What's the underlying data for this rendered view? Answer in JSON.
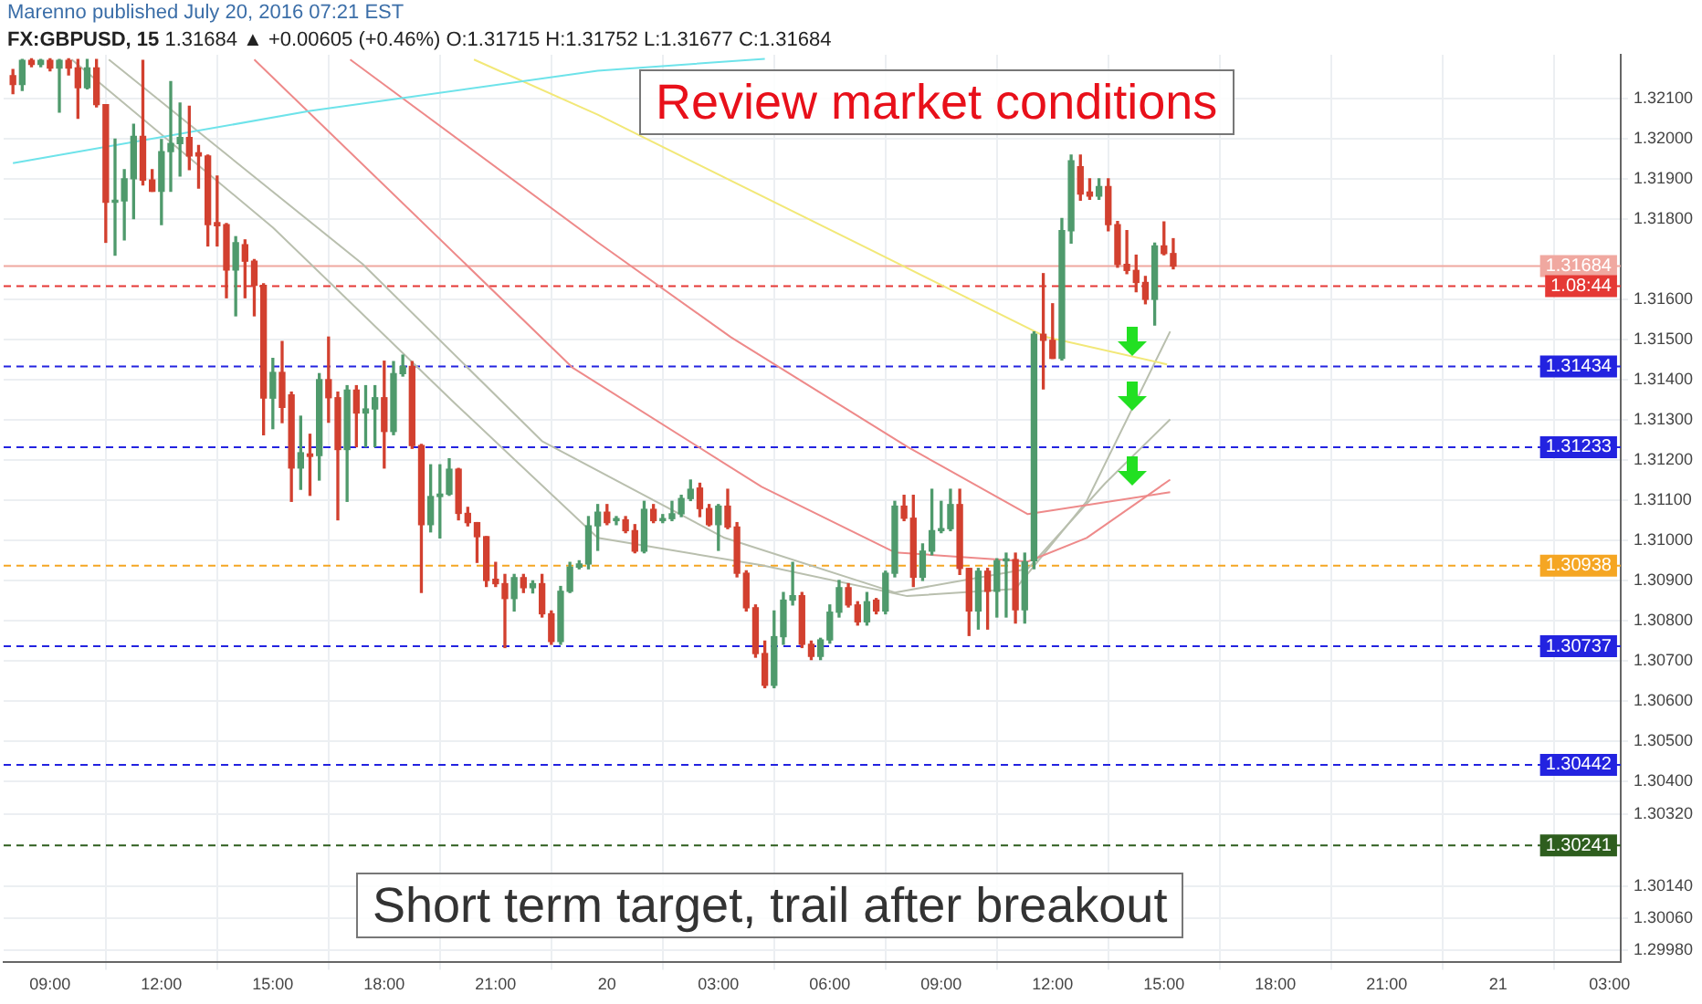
{
  "chart_data": {
    "type": "candlestick",
    "title": "FX:GBPUSD, 15",
    "subtitle": "1.31684 ▲ +0.00605 (+0.46%) O:1.31715 H:1.31752 L:1.31677 C:1.31684",
    "annotations": [
      "Marenno published July 20, 2016 07:21 EST",
      "Review market conditions",
      "Short term target, trail after breakout",
      {
        "text": "1.08:44",
        "y": 1.31634
      }
    ],
    "x": [
      "2016-07-19T08:00",
      "2016-07-19T08:15",
      "2016-07-19T08:30",
      "2016-07-19T08:45",
      "2016-07-19T09:00",
      "2016-07-19T09:15",
      "2016-07-19T09:30",
      "2016-07-19T09:45",
      "2016-07-19T10:00",
      "2016-07-19T10:15",
      "2016-07-19T10:30",
      "2016-07-19T10:45",
      "2016-07-19T11:00",
      "2016-07-19T11:15",
      "2016-07-19T11:30",
      "2016-07-19T11:45",
      "2016-07-19T12:00",
      "2016-07-19T12:15",
      "2016-07-19T12:30",
      "2016-07-19T12:45",
      "2016-07-19T13:00",
      "2016-07-19T13:15",
      "2016-07-19T13:30",
      "2016-07-19T13:45",
      "2016-07-19T14:00",
      "2016-07-19T14:15",
      "2016-07-19T14:30",
      "2016-07-19T14:45",
      "2016-07-19T15:00",
      "2016-07-19T15:15",
      "2016-07-19T15:30",
      "2016-07-19T15:45",
      "2016-07-19T16:00",
      "2016-07-19T16:15",
      "2016-07-19T16:30",
      "2016-07-19T16:45",
      "2016-07-19T17:00",
      "2016-07-19T17:15",
      "2016-07-19T17:30",
      "2016-07-19T17:45",
      "2016-07-19T18:00",
      "2016-07-19T18:15",
      "2016-07-19T18:30",
      "2016-07-19T18:45",
      "2016-07-19T19:00",
      "2016-07-19T19:15",
      "2016-07-19T19:30",
      "2016-07-19T19:45",
      "2016-07-19T20:00",
      "2016-07-19T20:15",
      "2016-07-19T20:30",
      "2016-07-19T20:45",
      "2016-07-19T21:00",
      "2016-07-19T21:15",
      "2016-07-19T21:30",
      "2016-07-19T21:45",
      "2016-07-19T22:00",
      "2016-07-19T22:15",
      "2016-07-19T22:30",
      "2016-07-19T22:45",
      "2016-07-19T23:00",
      "2016-07-19T23:15",
      "2016-07-19T23:30",
      "2016-07-19T23:45",
      "2016-07-20T00:00",
      "2016-07-20T00:15",
      "2016-07-20T00:30",
      "2016-07-20T00:45",
      "2016-07-20T01:00",
      "2016-07-20T01:15",
      "2016-07-20T01:30",
      "2016-07-20T01:45",
      "2016-07-20T02:00",
      "2016-07-20T02:15",
      "2016-07-20T02:30",
      "2016-07-20T02:45",
      "2016-07-20T03:00",
      "2016-07-20T03:15",
      "2016-07-20T03:30",
      "2016-07-20T03:45",
      "2016-07-20T04:00",
      "2016-07-20T04:15",
      "2016-07-20T04:30",
      "2016-07-20T04:45",
      "2016-07-20T05:00",
      "2016-07-20T05:15",
      "2016-07-20T05:30",
      "2016-07-20T05:45",
      "2016-07-20T06:00",
      "2016-07-20T06:15",
      "2016-07-20T06:30",
      "2016-07-20T06:45",
      "2016-07-20T07:00",
      "2016-07-20T07:15",
      "2016-07-20T07:30",
      "2016-07-20T07:45",
      "2016-07-20T08:00",
      "2016-07-20T08:15",
      "2016-07-20T08:30",
      "2016-07-20T08:45",
      "2016-07-20T09:00",
      "2016-07-20T09:15",
      "2016-07-20T09:30",
      "2016-07-20T09:45",
      "2016-07-20T10:00",
      "2016-07-20T10:15",
      "2016-07-20T10:30",
      "2016-07-20T10:45",
      "2016-07-20T11:00",
      "2016-07-20T11:15",
      "2016-07-20T11:30",
      "2016-07-20T11:45",
      "2016-07-20T12:00",
      "2016-07-20T12:15",
      "2016-07-20T12:30",
      "2016-07-20T12:45",
      "2016-07-20T13:00",
      "2016-07-20T13:15",
      "2016-07-20T13:30",
      "2016-07-20T13:45",
      "2016-07-20T14:00",
      "2016-07-20T14:15",
      "2016-07-20T14:30",
      "2016-07-20T14:45",
      "2016-07-20T15:00",
      "2016-07-20T15:15"
    ],
    "ohlc": [
      [
        1.32158,
        1.32173,
        1.32113,
        1.32136
      ],
      [
        1.32136,
        1.32198,
        1.32121,
        1.32196
      ],
      [
        1.32196,
        1.322,
        1.3218,
        1.32186
      ],
      [
        1.32186,
        1.32198,
        1.3218,
        1.32196
      ],
      [
        1.32196,
        1.322,
        1.3217,
        1.32177
      ],
      [
        1.32177,
        1.32198,
        1.32067,
        1.32196
      ],
      [
        1.32196,
        1.322,
        1.3216,
        1.32177
      ],
      [
        1.32177,
        1.32198,
        1.32052,
        1.32128
      ],
      [
        1.32128,
        1.32198,
        1.32125,
        1.32177
      ],
      [
        1.32177,
        1.32198,
        1.3208,
        1.32086
      ],
      [
        1.32086,
        1.32086,
        1.31743,
        1.31843
      ],
      [
        1.31843,
        1.32,
        1.31711,
        1.31846
      ],
      [
        1.31846,
        1.31924,
        1.31749,
        1.31901
      ],
      [
        1.31901,
        1.32037,
        1.31802,
        1.32007
      ],
      [
        1.32007,
        1.32196,
        1.31886,
        1.31898
      ],
      [
        1.31898,
        1.31924,
        1.3187,
        1.3187
      ],
      [
        1.3187,
        1.31999,
        1.31787,
        1.31969
      ],
      [
        1.31969,
        1.32143,
        1.3187,
        1.31989
      ],
      [
        1.31989,
        1.3209,
        1.31908,
        1.32004
      ],
      [
        1.32004,
        1.32082,
        1.31924,
        1.31958
      ],
      [
        1.31966,
        1.31984,
        1.31878,
        1.31958
      ],
      [
        1.31958,
        1.3196,
        1.31734,
        1.31787
      ],
      [
        1.31792,
        1.31908,
        1.31734,
        1.31784
      ],
      [
        1.31787,
        1.3179,
        1.31605,
        1.31674
      ],
      [
        1.31674,
        1.31757,
        1.3156,
        1.31742
      ],
      [
        1.31737,
        1.31749,
        1.31605,
        1.31696
      ],
      [
        1.31696,
        1.317,
        1.3156,
        1.31636
      ],
      [
        1.31636,
        1.3164,
        1.31264,
        1.31355
      ],
      [
        1.31355,
        1.31454,
        1.31279,
        1.31419
      ],
      [
        1.31419,
        1.31496,
        1.31294,
        1.31332
      ],
      [
        1.31363,
        1.3137,
        1.31098,
        1.31181
      ],
      [
        1.31181,
        1.3131,
        1.31128,
        1.31219
      ],
      [
        1.31216,
        1.31265,
        1.31113,
        1.3121
      ],
      [
        1.31212,
        1.31416,
        1.31151,
        1.31401
      ],
      [
        1.31401,
        1.31507,
        1.31295,
        1.31356
      ],
      [
        1.31356,
        1.3137,
        1.31052,
        1.31227
      ],
      [
        1.31227,
        1.31386,
        1.31098,
        1.31375
      ],
      [
        1.31375,
        1.31386,
        1.31234,
        1.31318
      ],
      [
        1.31318,
        1.31386,
        1.31234,
        1.31328
      ],
      [
        1.31328,
        1.31386,
        1.31234,
        1.31356
      ],
      [
        1.31356,
        1.31447,
        1.31181,
        1.31272
      ],
      [
        1.31272,
        1.31446,
        1.31264,
        1.31416
      ],
      [
        1.31416,
        1.31462,
        1.3141,
        1.31434
      ],
      [
        1.31434,
        1.31446,
        1.3123,
        1.31237
      ],
      [
        1.31237,
        1.3124,
        1.30871,
        1.3104
      ],
      [
        1.3104,
        1.31189,
        1.31022,
        1.3111
      ],
      [
        1.3111,
        1.31189,
        1.31007,
        1.31116
      ],
      [
        1.31116,
        1.31204,
        1.31113,
        1.31178
      ],
      [
        1.31178,
        1.3118,
        1.31052,
        1.31068
      ],
      [
        1.31068,
        1.31083,
        1.31037,
        1.31045
      ],
      [
        1.31045,
        1.31045,
        1.30946,
        1.3101
      ],
      [
        1.3101,
        1.3101,
        1.30886,
        1.30901
      ],
      [
        1.30904,
        1.30946,
        1.30886,
        1.30893
      ],
      [
        1.30893,
        1.30916,
        1.30734,
        1.30856
      ],
      [
        1.30856,
        1.30916,
        1.30825,
        1.30908
      ],
      [
        1.30908,
        1.30916,
        1.30871,
        1.30883
      ],
      [
        1.30883,
        1.309,
        1.3087,
        1.30893
      ],
      [
        1.30893,
        1.30916,
        1.3081,
        1.30818
      ],
      [
        1.30818,
        1.30825,
        1.30742,
        1.30749
      ],
      [
        1.30749,
        1.30886,
        1.30742,
        1.30874
      ],
      [
        1.30874,
        1.30946,
        1.30871,
        1.30934
      ],
      [
        1.30934,
        1.3095,
        1.3093,
        1.30942
      ],
      [
        1.30942,
        1.3106,
        1.3093,
        1.31037
      ],
      [
        1.31037,
        1.3109,
        1.30976,
        1.31071
      ],
      [
        1.31071,
        1.3109,
        1.3104,
        1.31045
      ],
      [
        1.3105,
        1.3106,
        1.3104,
        1.31055
      ],
      [
        1.31052,
        1.3106,
        1.3102,
        1.31025
      ],
      [
        1.31025,
        1.3104,
        1.3097,
        1.30974
      ],
      [
        1.30974,
        1.31098,
        1.3097,
        1.31078
      ],
      [
        1.31078,
        1.3109,
        1.31045,
        1.3105
      ],
      [
        1.3105,
        1.31065,
        1.31045,
        1.31055
      ],
      [
        1.31055,
        1.31098,
        1.3105,
        1.31067
      ],
      [
        1.31067,
        1.31113,
        1.3106,
        1.31105
      ],
      [
        1.31105,
        1.31151,
        1.311,
        1.31128
      ],
      [
        1.31131,
        1.31143,
        1.3106,
        1.3108
      ],
      [
        1.3108,
        1.3109,
        1.31037,
        1.3104
      ],
      [
        1.3104,
        1.3109,
        1.30976,
        1.31086
      ],
      [
        1.31086,
        1.31128,
        1.3103,
        1.31034
      ],
      [
        1.31034,
        1.31045,
        1.3091,
        1.30919
      ],
      [
        1.30919,
        1.30925,
        1.30825,
        1.30833
      ],
      [
        1.30833,
        1.3084,
        1.3071,
        1.30719
      ],
      [
        1.30719,
        1.3075,
        1.30634,
        1.3064
      ],
      [
        1.3064,
        1.30825,
        1.30634,
        1.30761
      ],
      [
        1.30761,
        1.30871,
        1.30742,
        1.30852
      ],
      [
        1.30852,
        1.30946,
        1.3084,
        1.30863
      ],
      [
        1.30863,
        1.30871,
        1.30734,
        1.30742
      ],
      [
        1.30742,
        1.3075,
        1.30704,
        1.30712
      ],
      [
        1.30712,
        1.30757,
        1.30704,
        1.30753
      ],
      [
        1.30753,
        1.3084,
        1.30745,
        1.30822
      ],
      [
        1.30822,
        1.30901,
        1.3081,
        1.30883
      ],
      [
        1.30883,
        1.30893,
        1.30835,
        1.3084
      ],
      [
        1.3084,
        1.30848,
        1.3079,
        1.30798
      ],
      [
        1.30798,
        1.30871,
        1.3079,
        1.30848
      ],
      [
        1.30852,
        1.30856,
        1.30818,
        1.30825
      ],
      [
        1.30825,
        1.30924,
        1.30818,
        1.30919
      ],
      [
        1.30919,
        1.31098,
        1.3091,
        1.31086
      ],
      [
        1.31086,
        1.31113,
        1.3105,
        1.31056
      ],
      [
        1.31056,
        1.31113,
        1.30886,
        1.30909
      ],
      [
        1.30909,
        1.30992,
        1.30901,
        1.30974
      ],
      [
        1.30974,
        1.31128,
        1.30965,
        1.31025
      ],
      [
        1.31025,
        1.31098,
        1.3102,
        1.3103
      ],
      [
        1.3103,
        1.31128,
        1.31025,
        1.3109
      ],
      [
        1.3109,
        1.31128,
        1.30916,
        1.30931
      ],
      [
        1.30931,
        1.30931,
        1.30764,
        1.30825
      ],
      [
        1.30825,
        1.30931,
        1.3078,
        1.30924
      ],
      [
        1.30924,
        1.30931,
        1.3078,
        1.30874
      ],
      [
        1.30874,
        1.30955,
        1.3081,
        1.3095
      ],
      [
        1.3095,
        1.30969,
        1.3081,
        1.30953
      ],
      [
        1.30953,
        1.30969,
        1.30795,
        1.30828
      ],
      [
        1.30828,
        1.30969,
        1.30795,
        1.30947
      ],
      [
        1.3095,
        1.3152,
        1.3093,
        1.31514
      ],
      [
        1.31514,
        1.31665,
        1.31378,
        1.31499
      ],
      [
        1.31499,
        1.3159,
        1.31454,
        1.31454
      ],
      [
        1.31454,
        1.31802,
        1.3145,
        1.31772
      ],
      [
        1.31772,
        1.3196,
        1.31741,
        1.31946
      ],
      [
        1.31931,
        1.3196,
        1.31848,
        1.31863
      ],
      [
        1.31868,
        1.31901,
        1.3185,
        1.31858
      ],
      [
        1.31858,
        1.31901,
        1.3185,
        1.31882
      ],
      [
        1.31882,
        1.31901,
        1.31772,
        1.31787
      ],
      [
        1.31787,
        1.31795,
        1.31681,
        1.31688
      ],
      [
        1.31688,
        1.31772,
        1.31665,
        1.31673
      ],
      [
        1.31673,
        1.31711,
        1.3162,
        1.31643
      ],
      [
        1.31643,
        1.31658,
        1.3159,
        1.31601
      ],
      [
        1.31601,
        1.31741,
        1.31537,
        1.31734
      ],
      [
        1.31734,
        1.31794,
        1.31712,
        1.31715
      ],
      [
        1.31715,
        1.31752,
        1.31677,
        1.31684
      ]
    ],
    "series": [
      {
        "type": "line",
        "color": "#6ee3ea",
        "x": [
          "2016-07-19T08:00",
          "2016-07-19T16:00",
          "2016-07-19T23:45",
          "2016-07-20T04:15"
        ],
        "values": [
          1.3194,
          1.3207,
          1.3217,
          1.322
        ]
      },
      {
        "type": "line",
        "color": "#f2e878",
        "x": [
          "2016-07-19T20:25",
          "2016-07-19T23:45",
          "2016-07-20T07:05",
          "2016-07-20T11:50",
          "2016-07-20T15:05"
        ],
        "values": [
          1.32198,
          1.32061,
          1.31725,
          1.31507,
          1.31439
        ]
      },
      {
        "type": "line",
        "color": "#ee8a8a",
        "x": [
          "2016-07-19T14:30",
          "2016-07-19T23:05",
          "2016-07-20T04:10",
          "2016-07-20T07:45",
          "2016-07-20T11:20",
          "2016-07-20T12:55",
          "2016-07-20T15:10"
        ],
        "values": [
          1.32198,
          1.3143,
          1.31134,
          1.30971,
          1.30948,
          1.31007,
          1.31152
        ]
      },
      {
        "type": "line",
        "color": "#ee8a8a",
        "x": [
          "2016-07-19T17:05",
          "2016-07-19T23:45",
          "2016-07-20T03:20",
          "2016-07-20T08:05",
          "2016-07-20T11:20",
          "2016-07-20T15:10"
        ],
        "values": [
          1.32198,
          1.31743,
          1.31507,
          1.31234,
          1.31066,
          1.31121
        ]
      },
      {
        "type": "line",
        "color": "#b9bfae",
        "x": [
          "2016-07-19T09:35",
          "2016-07-19T15:00",
          "2016-07-19T19:50",
          "2016-07-19T23:45",
          "2016-07-20T04:10",
          "2016-07-20T08:05",
          "2016-07-20T11:00",
          "2016-07-20T12:55",
          "2016-07-20T15:10"
        ],
        "values": [
          1.32198,
          1.3178,
          1.31348,
          1.31007,
          1.30939,
          1.30862,
          1.3088,
          1.31098,
          1.31521
        ]
      },
      {
        "type": "line",
        "color": "#b9bfae",
        "x": [
          "2016-07-19T10:35",
          "2016-07-19T17:25",
          "2016-07-19T22:15",
          "2016-07-20T03:10",
          "2016-07-20T07:45",
          "2016-07-20T11:20",
          "2016-07-20T13:25",
          "2016-07-20T15:10"
        ],
        "values": [
          1.32198,
          1.31689,
          1.31248,
          1.31007,
          1.30871,
          1.3093,
          1.31143,
          1.31302
        ]
      }
    ],
    "ref_lines": [
      {
        "axis": "y",
        "value": 1.31684,
        "label": "1.31684",
        "color": "#f0a8a0",
        "line_style": "solid"
      },
      {
        "axis": "y",
        "value": 1.31634,
        "color": "#e53935",
        "line_style": "dashed"
      },
      {
        "axis": "y",
        "value": 1.31434,
        "label": "1.31434",
        "color": "#2323e0",
        "line_style": "dashed"
      },
      {
        "axis": "y",
        "value": 1.31233,
        "label": "1.31233",
        "color": "#2323e0",
        "line_style": "dashed"
      },
      {
        "axis": "y",
        "value": 1.30938,
        "label": "1.30938",
        "color": "#f5a623",
        "line_style": "dashed"
      },
      {
        "axis": "y",
        "value": 1.30737,
        "label": "1.30737",
        "color": "#2323e0",
        "line_style": "dashed"
      },
      {
        "axis": "y",
        "value": 1.30442,
        "label": "1.30442",
        "color": "#2323e0",
        "line_style": "dashed"
      },
      {
        "axis": "y",
        "value": 1.30241,
        "label": "1.30241",
        "color": "#2e5e1e",
        "line_style": "dashed"
      }
    ],
    "xlim": [
      "2016-07-19T07:45",
      "2016-07-21T03:18"
    ],
    "xticks": [
      {
        "value": "2016-07-19T09:00",
        "label": "09:00"
      },
      {
        "value": "2016-07-19T12:00",
        "label": "12:00"
      },
      {
        "value": "2016-07-19T15:00",
        "label": "15:00"
      },
      {
        "value": "2016-07-19T18:00",
        "label": "18:00"
      },
      {
        "value": "2016-07-19T21:00",
        "label": "21:00"
      },
      {
        "value": "2016-07-20T00:00",
        "label": "20"
      },
      {
        "value": "2016-07-20T03:00",
        "label": "03:00"
      },
      {
        "value": "2016-07-20T06:00",
        "label": "06:00"
      },
      {
        "value": "2016-07-20T09:00",
        "label": "09:00"
      },
      {
        "value": "2016-07-20T12:00",
        "label": "12:00"
      },
      {
        "value": "2016-07-20T15:00",
        "label": "15:00"
      },
      {
        "value": "2016-07-20T18:00",
        "label": "18:00"
      },
      {
        "value": "2016-07-20T21:00",
        "label": "21:00"
      },
      {
        "value": "2016-07-21T00:00",
        "label": "21"
      },
      {
        "value": "2016-07-21T03:00",
        "label": "03:00"
      }
    ],
    "ylim": [
      1.2995,
      1.3221
    ],
    "yticks": [
      {
        "value": 1.321,
        "label": "1.32100"
      },
      {
        "value": 1.32,
        "label": "1.32000"
      },
      {
        "value": 1.319,
        "label": "1.31900"
      },
      {
        "value": 1.318,
        "label": "1.31800"
      },
      {
        "value": 1.316,
        "label": "1.31600"
      },
      {
        "value": 1.315,
        "label": "1.31500"
      },
      {
        "value": 1.314,
        "label": "1.31400"
      },
      {
        "value": 1.313,
        "label": "1.31300"
      },
      {
        "value": 1.312,
        "label": "1.31200"
      },
      {
        "value": 1.311,
        "label": "1.31100"
      },
      {
        "value": 1.31,
        "label": "1.31000"
      },
      {
        "value": 1.309,
        "label": "1.30900"
      },
      {
        "value": 1.308,
        "label": "1.30800"
      },
      {
        "value": 1.307,
        "label": "1.30700"
      },
      {
        "value": 1.306,
        "label": "1.30600"
      },
      {
        "value": 1.305,
        "label": "1.30500"
      },
      {
        "value": 1.304,
        "label": "1.30400"
      },
      {
        "value": 1.3032,
        "label": "1.30320"
      },
      {
        "value": 1.3014,
        "label": "1.30140"
      },
      {
        "value": 1.3006,
        "label": "1.30060"
      },
      {
        "value": 1.2998,
        "label": "1.29980"
      }
    ],
    "grid": true,
    "legend": false
  }
}
